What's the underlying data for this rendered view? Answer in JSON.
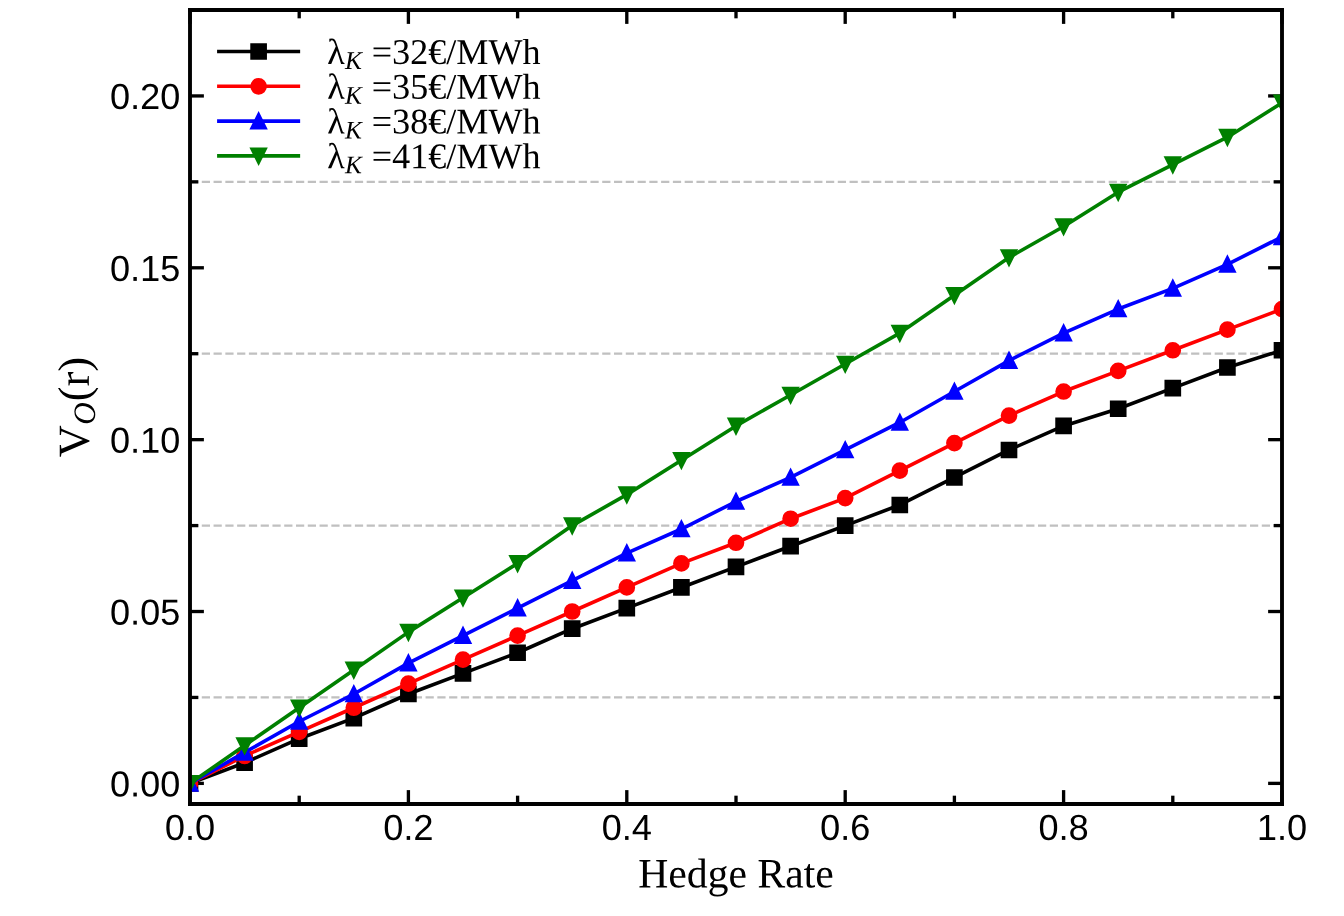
{
  "chart_data": {
    "type": "line",
    "xlabel": "Hedge Rate",
    "ylabel": "V$_{O}$(r)",
    "x": [
      0,
      0.05,
      0.1,
      0.15,
      0.2,
      0.25,
      0.3,
      0.35,
      0.4,
      0.45,
      0.5,
      0.55,
      0.6,
      0.65,
      0.7,
      0.75,
      0.8,
      0.85,
      0.9,
      0.95,
      1.0
    ],
    "series": [
      {
        "name": "λ$_{K}$ =32€/MWh",
        "color": "#000000",
        "marker": "square",
        "values": [
          0,
          0.006,
          0.013,
          0.019,
          0.026,
          0.032,
          0.038,
          0.045,
          0.051,
          0.057,
          0.063,
          0.069,
          0.075,
          0.081,
          0.089,
          0.097,
          0.104,
          0.109,
          0.115,
          0.121,
          0.126
        ]
      },
      {
        "name": "λ$_{K}$ =35€/MWh",
        "color": "#ff0000",
        "marker": "circle",
        "values": [
          0,
          0.008,
          0.015,
          0.022,
          0.029,
          0.036,
          0.043,
          0.05,
          0.057,
          0.064,
          0.07,
          0.077,
          0.083,
          0.091,
          0.099,
          0.107,
          0.114,
          0.12,
          0.126,
          0.132,
          0.138
        ]
      },
      {
        "name": "λ$_{K}$ =38€/MWh",
        "color": "#0000ff",
        "marker": "triangle",
        "values": [
          0,
          0.009,
          0.018,
          0.026,
          0.035,
          0.043,
          0.051,
          0.059,
          0.067,
          0.074,
          0.082,
          0.089,
          0.097,
          0.105,
          0.114,
          0.123,
          0.131,
          0.138,
          0.144,
          0.151,
          0.159
        ]
      },
      {
        "name": "λ$_{K}$ =41€/MWh",
        "color": "#008000",
        "marker": "triangle-down",
        "values": [
          0,
          0.011,
          0.022,
          0.033,
          0.044,
          0.054,
          0.064,
          0.075,
          0.084,
          0.094,
          0.104,
          0.113,
          0.122,
          0.131,
          0.142,
          0.153,
          0.162,
          0.172,
          0.18,
          0.188,
          0.198
        ]
      }
    ],
    "xlim": [
      0,
      1.0
    ],
    "ylim": [
      -0.006,
      0.225
    ],
    "xticks": [
      {
        "value": 0,
        "label": "0.0"
      },
      {
        "value": 0.1,
        "label": null
      },
      {
        "value": 0.2,
        "label": "0.2"
      },
      {
        "value": 0.3,
        "label": null
      },
      {
        "value": 0.4,
        "label": "0.4"
      },
      {
        "value": 0.5,
        "label": null
      },
      {
        "value": 0.6,
        "label": "0.6"
      },
      {
        "value": 0.7,
        "label": null
      },
      {
        "value": 0.8,
        "label": "0.8"
      },
      {
        "value": 0.9,
        "label": null
      },
      {
        "value": 1.0,
        "label": "1.0"
      }
    ],
    "yticks": [
      {
        "value": 0,
        "label": "0.00"
      },
      {
        "value": 0.025,
        "label": null
      },
      {
        "value": 0.05,
        "label": "0.05"
      },
      {
        "value": 0.075,
        "label": null
      },
      {
        "value": 0.1,
        "label": "0.10"
      },
      {
        "value": 0.125,
        "label": null
      },
      {
        "value": 0.15,
        "label": "0.15"
      },
      {
        "value": 0.175,
        "label": null
      },
      {
        "value": 0.2,
        "label": "0.20"
      }
    ],
    "ref_lines": [
      {
        "axis": "y",
        "value": 0.025,
        "color": "#c0c0c0",
        "line_style": "dashed"
      },
      {
        "axis": "y",
        "value": 0.075,
        "color": "#c0c0c0",
        "line_style": "dashed"
      },
      {
        "axis": "y",
        "value": 0.125,
        "color": "#c0c0c0",
        "line_style": "dashed"
      },
      {
        "axis": "y",
        "value": 0.175,
        "color": "#c0c0c0",
        "line_style": "dashed"
      }
    ],
    "legend": "top left",
    "line_style": "solid",
    "grid": false
  }
}
